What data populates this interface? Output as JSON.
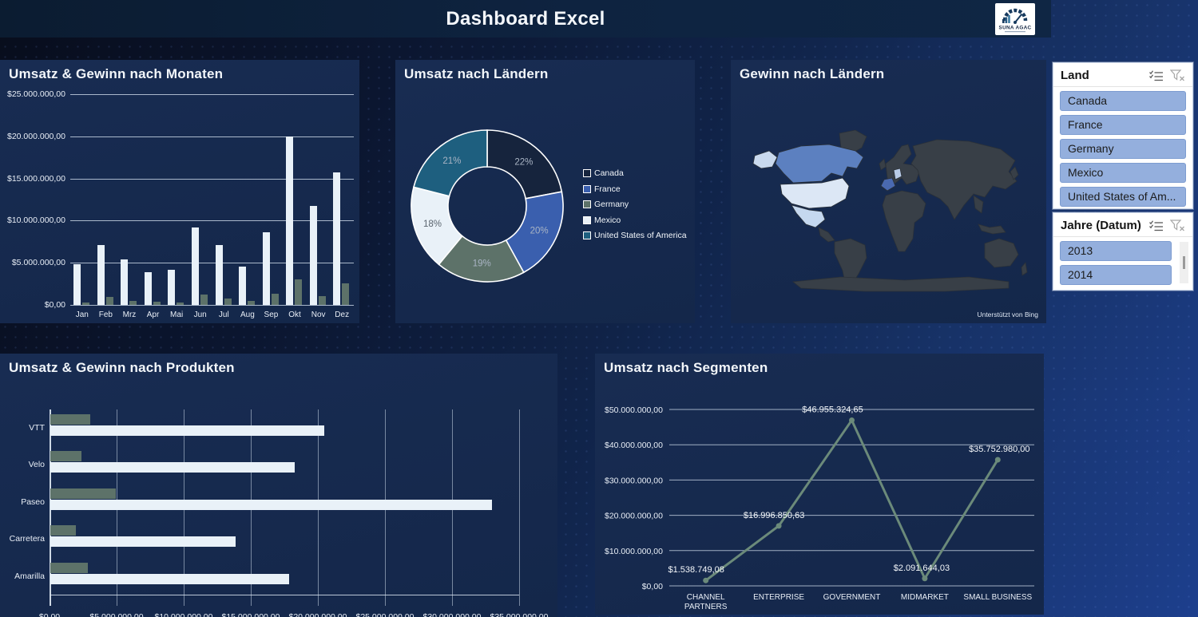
{
  "header": {
    "title": "Dashboard Excel",
    "logo_text": "SUNA AGAC"
  },
  "colors": {
    "header_bar": "#0d2137",
    "panel": "#16294c",
    "umsatz_bar": "#e9f1f8",
    "gewinn_bar": "#5d7269",
    "line_series": "#6b8a7a",
    "slicer_item_bg": "#94afdd",
    "map_land": "#383f47",
    "map_highlight_canada": "#5c80c0",
    "map_highlight_usa": "#dce7f5",
    "map_highlight_mexico": "#c5d8ef",
    "map_highlight_france": "#4a69b0",
    "map_highlight_germany": "#b9cce8"
  },
  "chart_data": [
    {
      "type": "bar",
      "title": "Umsatz & Gewinn nach Monaten",
      "categories": [
        "Jan",
        "Feb",
        "Mrz",
        "Apr",
        "Mai",
        "Jun",
        "Jul",
        "Aug",
        "Sep",
        "Okt",
        "Nov",
        "Dez"
      ],
      "series": [
        {
          "name": "Umsatz",
          "color": "#e9f1f8",
          "values": [
            4800000,
            7100000,
            5400000,
            3900000,
            4200000,
            9200000,
            7100000,
            4500000,
            8600000,
            20000000,
            11700000,
            15700000
          ]
        },
        {
          "name": "Gewinn",
          "color": "#5d7269",
          "values": [
            320000,
            960000,
            480000,
            380000,
            320000,
            1200000,
            800000,
            450000,
            1300000,
            3000000,
            1000000,
            2560000
          ]
        }
      ],
      "ylim": [
        0,
        25000000
      ],
      "ytick_labels": [
        "$0,00",
        "$5.000.000,00",
        "$10.000.000,00",
        "$15.000.000,00",
        "$20.000.000,00",
        "$25.000.000,00"
      ],
      "grid": true,
      "legend_position": "none"
    },
    {
      "type": "pie",
      "title": "Umsatz nach Ländern",
      "labels": [
        "Canada",
        "France",
        "Germany",
        "Mexico",
        "United States of America"
      ],
      "values": [
        22,
        20,
        19,
        18,
        21
      ],
      "pct_labels": [
        "22%",
        "20%",
        "19%",
        "18%",
        "21%"
      ],
      "colors": [
        "#16243d",
        "#3a5fae",
        "#5d7269",
        "#e9f1f8",
        "#1e5f7f"
      ],
      "donut": true,
      "legend_position": "right"
    },
    {
      "type": "map",
      "title": "Gewinn nach Ländern",
      "highlighted_countries": [
        "Canada",
        "United States of America",
        "Mexico",
        "France",
        "Germany"
      ],
      "attribution": "Unterstützt von Bing"
    },
    {
      "type": "bar",
      "orientation": "horizontal",
      "title": "Umsatz & Gewinn nach Produkten",
      "categories": [
        "VTT",
        "Velo",
        "Paseo",
        "Carretera",
        "Amarilla"
      ],
      "series": [
        {
          "name": "Gewinn",
          "color": "#5d7269",
          "values": [
            3000000,
            2300000,
            4900000,
            1900000,
            2800000
          ]
        },
        {
          "name": "Umsatz",
          "color": "#e9f1f8",
          "values": [
            20400000,
            18200000,
            32900000,
            13800000,
            17800000
          ]
        }
      ],
      "xlim": [
        0,
        35000000
      ],
      "xtick_labels": [
        "$0,00",
        "$5.000.000,00",
        "$10.000.000,00",
        "$15.000.000,00",
        "$20.000.000,00",
        "$25.000.000,00",
        "$30.000.000,00",
        "$35.000.000,00"
      ],
      "grid": true,
      "legend_position": "none"
    },
    {
      "type": "line",
      "title": "Umsatz nach Segmenten",
      "categories": [
        "CHANNEL\nPARTNERS",
        "ENTERPRISE",
        "GOVERNMENT",
        "MIDMARKET",
        "SMALL BUSINESS"
      ],
      "values": [
        1538749.08,
        16996850.63,
        46955324.65,
        2091644.03,
        35752980.0
      ],
      "data_labels": [
        "$1.538.749,08",
        "$16.996.850,63",
        "$46.955.324,65",
        "$2.091.644,03",
        "$35.752.980,00"
      ],
      "color": "#6b8a7a",
      "ylim": [
        0,
        50000000
      ],
      "ytick_labels": [
        "$0,00",
        "$10.000.000,00",
        "$20.000.000,00",
        "$30.000.000,00",
        "$40.000.000,00",
        "$50.000.000,00"
      ],
      "grid": true,
      "legend_position": "none"
    }
  ],
  "slicers": [
    {
      "title": "Land",
      "items": [
        "Canada",
        "France",
        "Germany",
        "Mexico",
        "United States of Am..."
      ],
      "all_selected": true
    },
    {
      "title": "Jahre (Datum)",
      "items": [
        "2013",
        "2014"
      ],
      "all_selected": true,
      "has_scrollbar": true
    }
  ]
}
